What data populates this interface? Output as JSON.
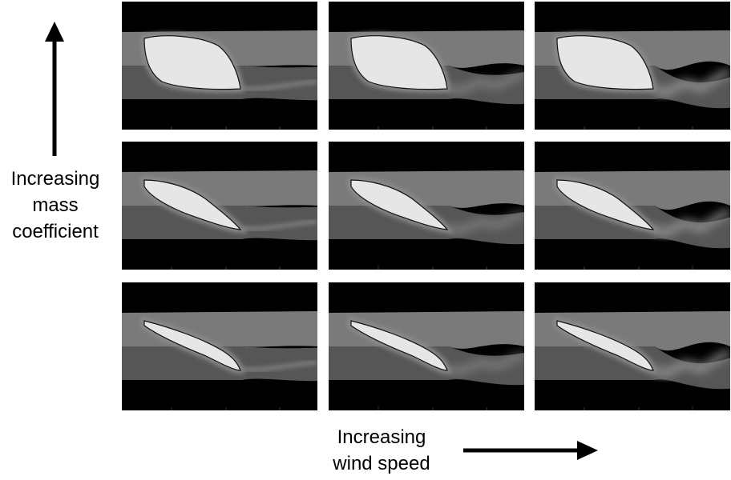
{
  "y_axis_label": [
    "Increasing",
    "mass",
    "coefficient"
  ],
  "x_axis_label": [
    "Increasing",
    "wind speed"
  ],
  "panels": [
    {
      "row": 1,
      "col": 1,
      "shape": "thick-blade",
      "wake": "mild"
    },
    {
      "row": 1,
      "col": 2,
      "shape": "thick-blade",
      "wake": "wavy"
    },
    {
      "row": 1,
      "col": 3,
      "shape": "thick-blade",
      "wake": "turbulent"
    },
    {
      "row": 2,
      "col": 1,
      "shape": "medium-blade",
      "wake": "mild"
    },
    {
      "row": 2,
      "col": 2,
      "shape": "medium-blade",
      "wake": "wavy"
    },
    {
      "row": 2,
      "col": 3,
      "shape": "medium-blade",
      "wake": "turbulent"
    },
    {
      "row": 3,
      "col": 1,
      "shape": "thin-blade",
      "wake": "mild"
    },
    {
      "row": 3,
      "col": 2,
      "shape": "thin-blade",
      "wake": "wavy"
    },
    {
      "row": 3,
      "col": 3,
      "shape": "thin-blade",
      "wake": "turbulent"
    }
  ],
  "colors": {
    "background": "#000000",
    "stream_upper": "#7a7a7a",
    "stream_lower": "#565656",
    "body": "#e6e6e6",
    "arrow": "#000000"
  }
}
